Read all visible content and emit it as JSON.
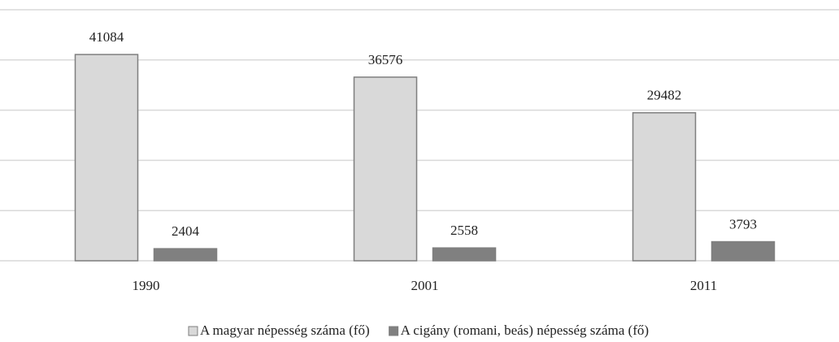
{
  "chart_data": {
    "type": "bar",
    "categories": [
      "1990",
      "2001",
      "2011"
    ],
    "series": [
      {
        "name": "A magyar népesség száma (fő)",
        "color": "#d9d9d9",
        "values": [
          41084,
          36576,
          29482
        ]
      },
      {
        "name": "A cigány (romani, beás) népesség száma (fő)",
        "color": "#808080",
        "values": [
          2404,
          2558,
          3793
        ]
      }
    ],
    "ylim": [
      0,
      50000
    ],
    "yticks": [
      0,
      10000,
      20000,
      30000,
      40000,
      50000
    ],
    "grid": true,
    "legend": "bottom"
  }
}
